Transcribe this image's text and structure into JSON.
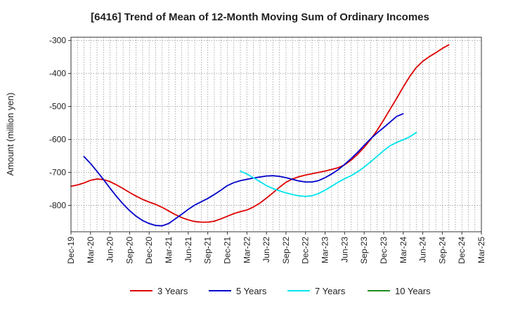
{
  "chart_data": {
    "type": "line",
    "title": "[6416]  Trend of Mean of 12-Month Moving Sum of Ordinary Incomes",
    "xlabel": "",
    "ylabel": "Amount (million yen)",
    "ylim": [
      -880,
      -290
    ],
    "yticks": [
      -300,
      -400,
      -500,
      -600,
      -700,
      -800
    ],
    "ytick_labels": [
      "-300",
      "-400",
      "-500",
      "-600",
      "-700",
      "-800"
    ],
    "x_tick_labels": [
      "Dec-19",
      "Mar-20",
      "Jun-20",
      "Sep-20",
      "Dec-20",
      "Mar-21",
      "Jun-21",
      "Sep-21",
      "Dec-21",
      "Mar-22",
      "Jun-22",
      "Sep-22",
      "Dec-22",
      "Mar-23",
      "Jun-23",
      "Sep-23",
      "Dec-23",
      "Mar-24",
      "Jun-24",
      "Sep-24",
      "Dec-24",
      "Mar-25"
    ],
    "grid": true,
    "legend_position": "bottom",
    "series": [
      {
        "name": "3 Years",
        "color": "#dd0000",
        "start_index": 0,
        "values": [
          -742,
          -738,
          -732,
          -724,
          -720,
          -722,
          -728,
          -738,
          -749,
          -761,
          -772,
          -782,
          -790,
          -797,
          -806,
          -817,
          -828,
          -837,
          -844,
          -849,
          -851,
          -851,
          -848,
          -841,
          -833,
          -825,
          -819,
          -814,
          -805,
          -793,
          -778,
          -762,
          -745,
          -730,
          -720,
          -713,
          -708,
          -704,
          -700,
          -696,
          -691,
          -686,
          -677,
          -663,
          -645,
          -624,
          -600,
          -572,
          -541,
          -508,
          -475,
          -441,
          -409,
          -382,
          -363,
          -349,
          -337,
          -324,
          -313
        ]
      },
      {
        "name": "5 Years",
        "color": "#0000cc",
        "start_index": 2,
        "values": [
          -652,
          -673,
          -697,
          -722,
          -748,
          -773,
          -796,
          -816,
          -833,
          -846,
          -855,
          -861,
          -862,
          -855,
          -841,
          -827,
          -812,
          -799,
          -789,
          -779,
          -767,
          -754,
          -740,
          -731,
          -725,
          -721,
          -717,
          -714,
          -711,
          -710,
          -712,
          -716,
          -721,
          -726,
          -729,
          -729,
          -725,
          -716,
          -705,
          -692,
          -676,
          -658,
          -639,
          -618,
          -598,
          -580,
          -564,
          -547,
          -530,
          -522
        ]
      },
      {
        "name": "7 Years",
        "color": "#00e5ee",
        "start_index": 26,
        "values": [
          -696,
          -705,
          -716,
          -728,
          -740,
          -749,
          -756,
          -762,
          -767,
          -771,
          -773,
          -771,
          -764,
          -754,
          -742,
          -730,
          -719,
          -710,
          -698,
          -684,
          -668,
          -651,
          -634,
          -619,
          -609,
          -601,
          -592,
          -579
        ]
      },
      {
        "name": "10 Years",
        "color": "#228b22",
        "start_index": 0,
        "values": []
      }
    ]
  }
}
